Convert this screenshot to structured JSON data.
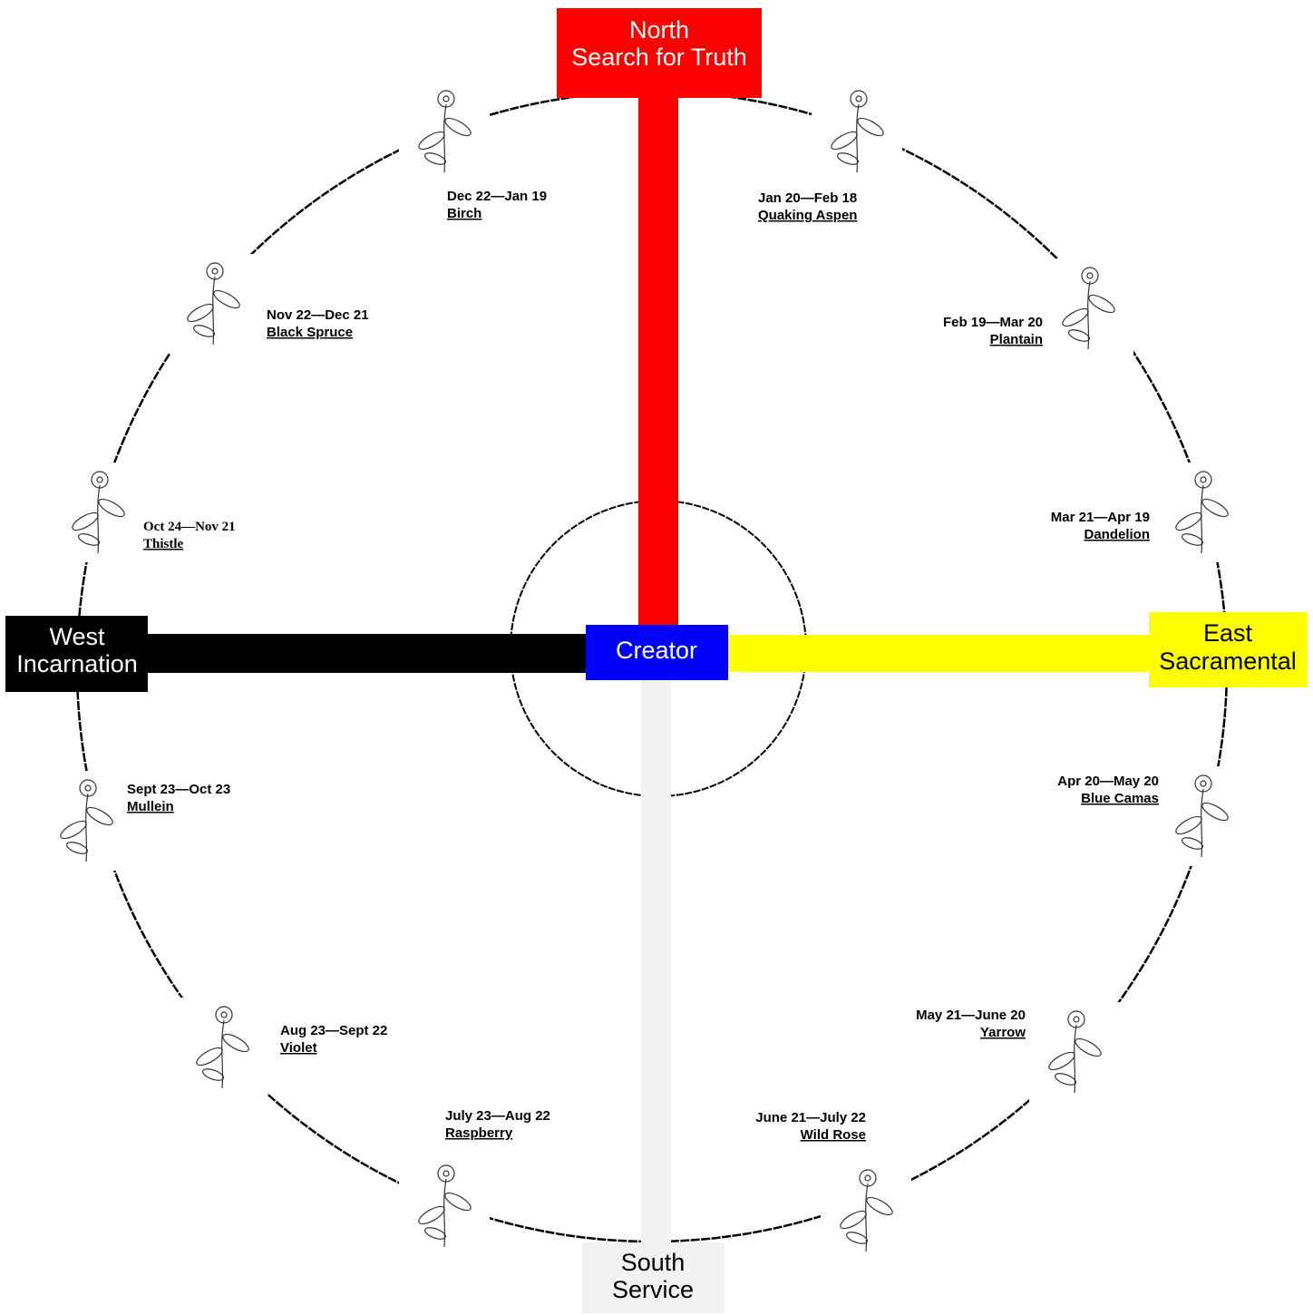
{
  "directions": {
    "north": {
      "title": "North",
      "subtitle": "Search for Truth"
    },
    "east": {
      "title": "East",
      "subtitle": "Sacramental"
    },
    "south": {
      "title": "South",
      "subtitle": "Service"
    },
    "west": {
      "title": "West",
      "subtitle": "Incarnation"
    }
  },
  "center": {
    "label": "Creator"
  },
  "months": [
    {
      "dates": "Dec 22—Jan 19",
      "plant": "Birch"
    },
    {
      "dates": "Jan 20—Feb 18",
      "plant": "Quaking Aspen"
    },
    {
      "dates": "Feb 19—Mar 20",
      "plant": "Plantain"
    },
    {
      "dates": "Mar 21—Apr 19",
      "plant": "Dandelion"
    },
    {
      "dates": "Apr 20—May 20",
      "plant": "Blue Camas"
    },
    {
      "dates": "May 21—June 20",
      "plant": "Yarrow"
    },
    {
      "dates": "June 21—July 22",
      "plant": "Wild Rose"
    },
    {
      "dates": "July 23—Aug 22",
      "plant": "Raspberry"
    },
    {
      "dates": "Aug 23—Sept 22",
      "plant": "Violet"
    },
    {
      "dates": "Sept 23—Oct 23",
      "plant": "Mullein"
    },
    {
      "dates": "Oct 24—Nov 21",
      "plant": "Thistle"
    },
    {
      "dates": "Nov 22—Dec 21",
      "plant": "Black Spruce"
    }
  ]
}
